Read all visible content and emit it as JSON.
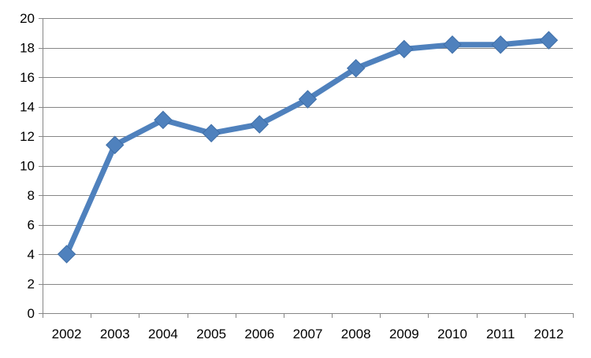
{
  "chart_data": {
    "type": "line",
    "categories": [
      "2002",
      "2003",
      "2004",
      "2005",
      "2006",
      "2007",
      "2008",
      "2009",
      "2010",
      "2011",
      "2012"
    ],
    "series": [
      {
        "values": [
          4.0,
          11.4,
          13.1,
          12.2,
          12.8,
          14.5,
          16.6,
          17.9,
          18.2,
          18.2,
          18.5
        ],
        "color": "#4F81BD",
        "marker": "diamond"
      }
    ],
    "ylim": [
      0,
      20
    ],
    "yticks": [
      "0",
      "2",
      "4",
      "6",
      "8",
      "10",
      "12",
      "14",
      "16",
      "18",
      "20"
    ],
    "grid": true,
    "legend": "none",
    "title": "",
    "xlabel": "",
    "ylabel": ""
  }
}
